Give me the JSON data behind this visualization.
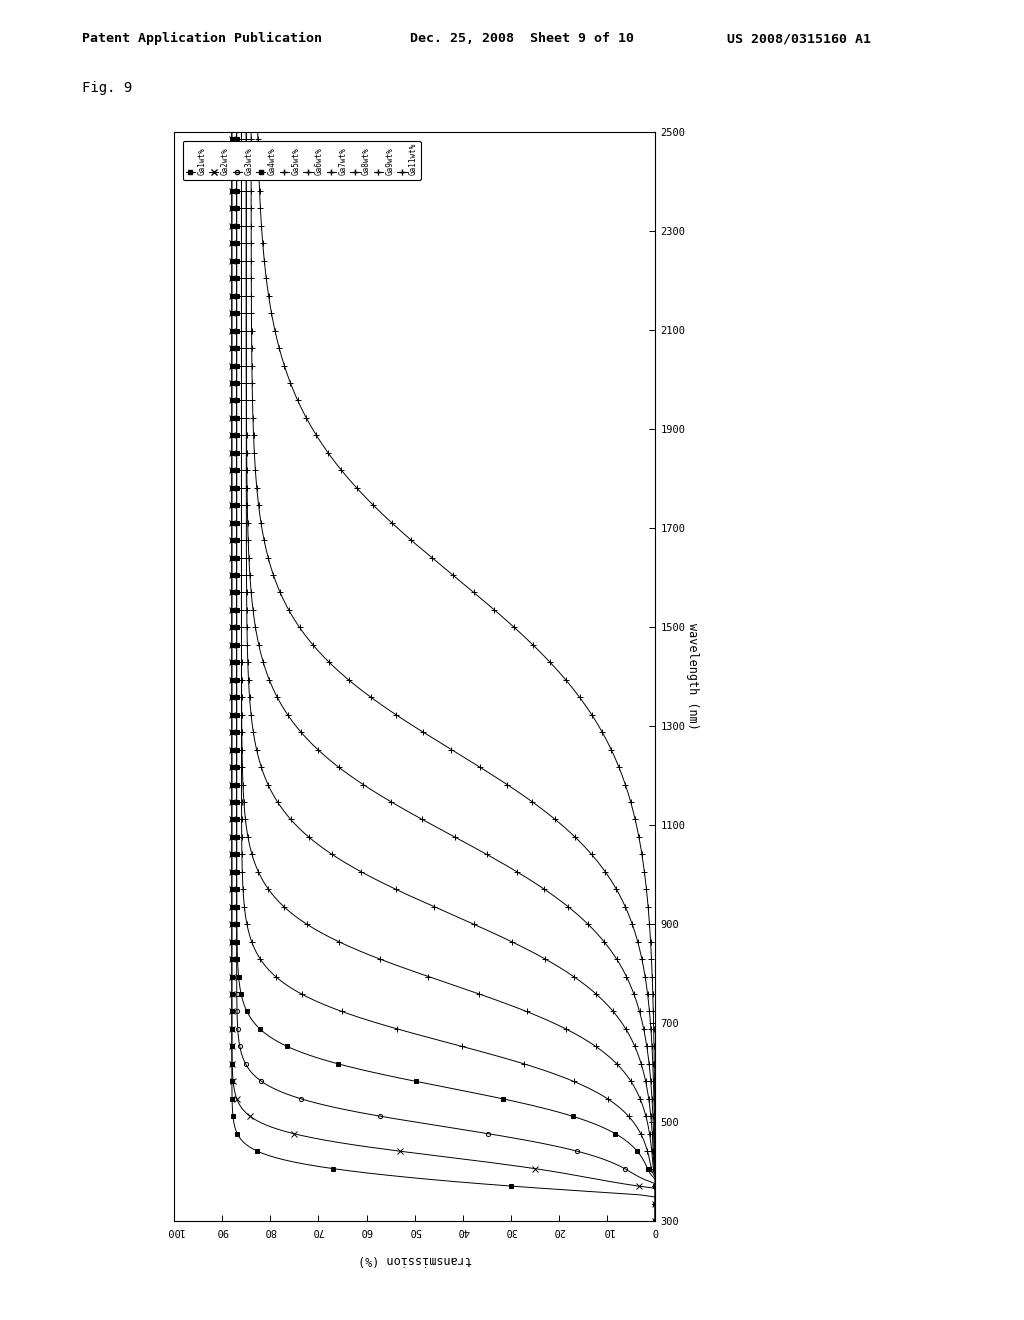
{
  "title": "Fig. 9",
  "header_line1": "Patent Application Publication",
  "header_line2": "Dec. 25, 2008  Sheet 9 of 10",
  "header_line3": "US 2008/0315160 A1",
  "xlabel": "transmission (%)",
  "ylabel": "wavelength (nm)",
  "xlim": [
    0,
    100
  ],
  "ylim": [
    300,
    2500
  ],
  "xticks": [
    0,
    10,
    20,
    30,
    40,
    50,
    60,
    70,
    80,
    90,
    100
  ],
  "yticks": [
    300,
    500,
    700,
    900,
    1100,
    1300,
    1500,
    1700,
    1900,
    2100,
    2300,
    2500
  ],
  "series_labels": [
    "Ga1wt%",
    "Ga2wt%",
    "Ga3wt%",
    "Ga4wt%",
    "Ga5wt%",
    "Ga6wt%",
    "Ga7wt%",
    "Ga8wt%",
    "Ga9wt%",
    "Ga11wt%"
  ],
  "edge_wavelengths": [
    380,
    430,
    490,
    570,
    660,
    780,
    920,
    1080,
    1250,
    1600
  ],
  "max_transmissions": [
    88,
    88,
    87,
    87,
    86,
    86,
    85,
    85,
    84,
    83
  ],
  "sharpnesses": [
    0.045,
    0.038,
    0.03,
    0.024,
    0.018,
    0.014,
    0.011,
    0.009,
    0.008,
    0.006
  ],
  "background_color": "#ffffff"
}
